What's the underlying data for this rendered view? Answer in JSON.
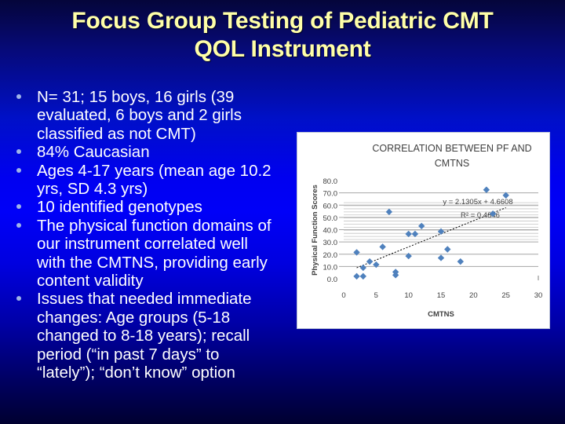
{
  "slide": {
    "title_lines": [
      "Focus Group Testing of Pediatric CMT",
      "QOL Instrument"
    ],
    "bullets": [
      [
        "N= 31; 15 boys, 16 girls (39",
        "evaluated, 6 boys and 2 girls",
        "classified as not CMT)"
      ],
      [
        "84% Caucasian"
      ],
      [
        "Ages 4-17 years (mean age 10.2",
        "yrs, SD 4.3 yrs)"
      ],
      [
        "10 identified genotypes"
      ],
      [
        "The physical function domains of",
        "our instrument correlated well",
        "with the CMTNS, providing early",
        "content validity"
      ],
      [
        "Issues that needed immediate",
        "changes: Age groups (5-18",
        "changed to 8-18 years);  recall",
        "period (“in past 7 days” to",
        "“lately”); “don’t know” option"
      ]
    ],
    "colors": {
      "title": "#ffffa8",
      "text": "#ffffff",
      "bullet_dot": "#9fb4e8",
      "background_top": "#05053a",
      "background_mid": "#0000f8",
      "background_bottom": "#000030",
      "marker": "#4f81bd"
    }
  },
  "chart_data": {
    "type": "scatter",
    "title": "CORRELATION BETWEEN PF AND CMTNS",
    "title_lines": [
      "CORRELATION BETWEEN PF AND",
      "CMTNS"
    ],
    "xlabel": "CMTNS",
    "ylabel": "Physical Function Scores",
    "xlim": [
      0,
      30
    ],
    "ylim": [
      0,
      80
    ],
    "x_ticks": [
      "0",
      "5",
      "10",
      "15",
      "20",
      "25",
      "30"
    ],
    "y_ticks": [
      "0.0",
      "10.0",
      "20.0",
      "30.0",
      "40.0",
      "50.0",
      "60.0",
      "70.0",
      "80.0"
    ],
    "grid": true,
    "legend": "none",
    "series": [
      {
        "name": "Physical Function Scores",
        "points": [
          [
            2,
            21.5
          ],
          [
            2,
            2
          ],
          [
            3,
            2
          ],
          [
            3,
            9
          ],
          [
            4,
            14
          ],
          [
            5,
            11.5
          ],
          [
            6,
            26
          ],
          [
            7,
            54.5
          ],
          [
            8,
            3
          ],
          [
            8,
            5.5
          ],
          [
            10,
            36.5
          ],
          [
            10,
            18.5
          ],
          [
            11,
            36.5
          ],
          [
            12,
            43
          ],
          [
            15,
            38.5
          ],
          [
            15,
            17
          ],
          [
            16,
            24
          ],
          [
            18,
            14
          ],
          [
            22,
            72.5
          ],
          [
            23,
            53
          ],
          [
            25,
            68
          ]
        ]
      }
    ],
    "trendline": {
      "type": "linear",
      "slope": 2.1305,
      "intercept": 4.6608,
      "x_range": [
        2,
        25
      ],
      "equation_label": "y = 2.1305x + 4.6608",
      "r2_label": "R² = 0.4846"
    }
  }
}
